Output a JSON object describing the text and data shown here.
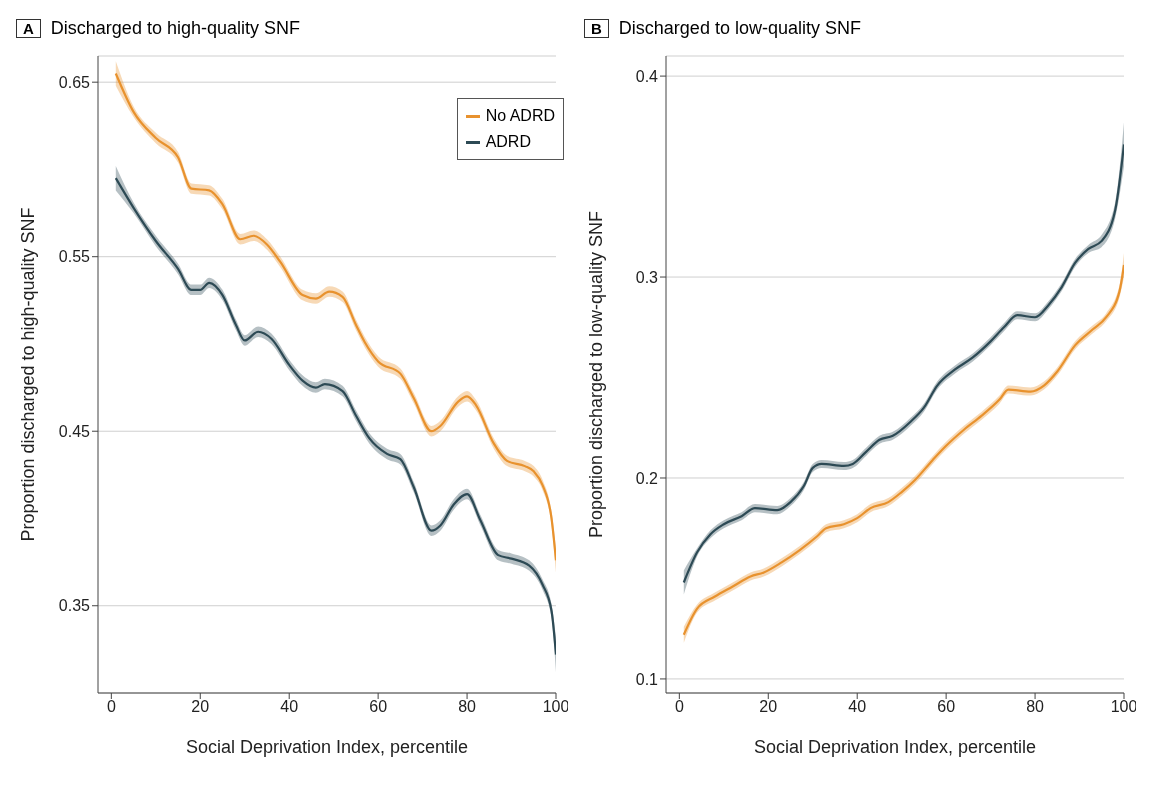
{
  "chart_data": [
    {
      "type": "line",
      "title": "Discharged to high-quality SNF",
      "annotations": [
        "A"
      ],
      "xlabel": "Social Deprivation Index, percentile",
      "ylabel": "Proportion discharged to high-quality SNF",
      "xlim": [
        -3,
        100
      ],
      "xticks": [
        0,
        20,
        40,
        60,
        80,
        100
      ],
      "ylim": [
        0.3,
        0.665
      ],
      "yticks": [
        0.35,
        0.45,
        0.55,
        0.65
      ],
      "grid": "y",
      "legend": "top right",
      "series": [
        {
          "name": "No ADRD",
          "color": "#e8922e",
          "x": [
            1,
            5,
            10,
            15,
            18,
            22,
            25,
            29,
            32,
            35,
            38,
            43,
            46,
            49,
            52,
            55,
            57,
            60,
            65,
            68,
            72,
            74,
            78,
            80,
            82,
            86,
            89,
            93,
            95,
            97,
            99,
            100
          ],
          "values": [
            0.655,
            0.633,
            0.618,
            0.607,
            0.589,
            0.588,
            0.58,
            0.56,
            0.562,
            0.557,
            0.547,
            0.528,
            0.526,
            0.53,
            0.527,
            0.511,
            0.501,
            0.49,
            0.483,
            0.469,
            0.45,
            0.453,
            0.467,
            0.47,
            0.465,
            0.443,
            0.433,
            0.43,
            0.427,
            0.419,
            0.4,
            0.376
          ],
          "lower": [
            0.648,
            0.63,
            0.615,
            0.604,
            0.586,
            0.585,
            0.577,
            0.557,
            0.559,
            0.554,
            0.544,
            0.525,
            0.523,
            0.527,
            0.524,
            0.508,
            0.498,
            0.487,
            0.48,
            0.466,
            0.447,
            0.45,
            0.464,
            0.467,
            0.462,
            0.44,
            0.43,
            0.427,
            0.424,
            0.416,
            0.396,
            0.369
          ],
          "upper": [
            0.662,
            0.636,
            0.621,
            0.61,
            0.592,
            0.591,
            0.583,
            0.563,
            0.565,
            0.56,
            0.55,
            0.531,
            0.529,
            0.533,
            0.53,
            0.514,
            0.504,
            0.493,
            0.486,
            0.472,
            0.453,
            0.456,
            0.47,
            0.473,
            0.468,
            0.446,
            0.436,
            0.433,
            0.43,
            0.422,
            0.404,
            0.383
          ]
        },
        {
          "name": "ADRD",
          "color": "#2d4a55",
          "x": [
            1,
            5,
            10,
            15,
            18,
            20,
            22,
            25,
            28,
            30,
            33,
            36,
            40,
            43,
            46,
            48,
            52,
            55,
            58,
            62,
            65,
            68,
            72,
            74,
            77,
            80,
            83,
            87,
            90,
            94,
            97,
            99,
            100
          ],
          "values": [
            0.595,
            0.578,
            0.559,
            0.543,
            0.531,
            0.531,
            0.535,
            0.528,
            0.511,
            0.502,
            0.507,
            0.503,
            0.488,
            0.479,
            0.475,
            0.477,
            0.473,
            0.459,
            0.446,
            0.437,
            0.434,
            0.418,
            0.393,
            0.396,
            0.408,
            0.414,
            0.399,
            0.379,
            0.377,
            0.373,
            0.362,
            0.347,
            0.322
          ],
          "lower": [
            0.588,
            0.575,
            0.556,
            0.54,
            0.528,
            0.528,
            0.532,
            0.525,
            0.508,
            0.499,
            0.504,
            0.5,
            0.485,
            0.476,
            0.472,
            0.474,
            0.47,
            0.456,
            0.443,
            0.434,
            0.431,
            0.415,
            0.39,
            0.393,
            0.405,
            0.411,
            0.396,
            0.376,
            0.374,
            0.37,
            0.359,
            0.343,
            0.312
          ],
          "upper": [
            0.602,
            0.581,
            0.562,
            0.546,
            0.534,
            0.534,
            0.538,
            0.531,
            0.514,
            0.505,
            0.51,
            0.506,
            0.491,
            0.482,
            0.478,
            0.48,
            0.476,
            0.462,
            0.449,
            0.44,
            0.437,
            0.421,
            0.396,
            0.399,
            0.411,
            0.417,
            0.402,
            0.382,
            0.38,
            0.376,
            0.365,
            0.351,
            0.332
          ]
        }
      ]
    },
    {
      "type": "line",
      "title": "Discharged to low-quality SNF",
      "annotations": [
        "B"
      ],
      "xlabel": "Social Deprivation Index, percentile",
      "ylabel": "Proportion discharged to low-quality SNF",
      "xlim": [
        -3,
        100
      ],
      "xticks": [
        0,
        20,
        40,
        60,
        80,
        100
      ],
      "ylim": [
        0.093,
        0.41
      ],
      "yticks": [
        0.1,
        0.2,
        0.3,
        0.4
      ],
      "grid": "y",
      "series": [
        {
          "color": "#2d4a55",
          "x": [
            1,
            4,
            7,
            10,
            14,
            17,
            22,
            25,
            28,
            30,
            32,
            37,
            39,
            42,
            45,
            48,
            52,
            55,
            58,
            62,
            66,
            70,
            73,
            76,
            80,
            83,
            86,
            89,
            92,
            95,
            98,
            100
          ],
          "values": [
            0.148,
            0.163,
            0.172,
            0.177,
            0.181,
            0.185,
            0.184,
            0.188,
            0.196,
            0.205,
            0.207,
            0.206,
            0.207,
            0.213,
            0.219,
            0.221,
            0.228,
            0.235,
            0.246,
            0.254,
            0.26,
            0.268,
            0.275,
            0.281,
            0.28,
            0.286,
            0.295,
            0.307,
            0.314,
            0.318,
            0.333,
            0.366
          ],
          "lower": [
            0.142,
            0.161,
            0.17,
            0.175,
            0.179,
            0.183,
            0.182,
            0.186,
            0.194,
            0.203,
            0.205,
            0.204,
            0.205,
            0.211,
            0.217,
            0.219,
            0.226,
            0.233,
            0.244,
            0.252,
            0.258,
            0.266,
            0.273,
            0.279,
            0.278,
            0.284,
            0.293,
            0.305,
            0.312,
            0.315,
            0.329,
            0.355
          ],
          "upper": [
            0.154,
            0.165,
            0.174,
            0.179,
            0.183,
            0.187,
            0.186,
            0.19,
            0.198,
            0.207,
            0.209,
            0.208,
            0.209,
            0.215,
            0.221,
            0.223,
            0.23,
            0.237,
            0.248,
            0.256,
            0.262,
            0.27,
            0.277,
            0.283,
            0.282,
            0.288,
            0.297,
            0.309,
            0.316,
            0.321,
            0.337,
            0.377
          ]
        },
        {
          "color": "#e8922e",
          "x": [
            1,
            4,
            8,
            12,
            16,
            19,
            23,
            27,
            31,
            33,
            37,
            40,
            43,
            47,
            50,
            53,
            57,
            60,
            64,
            68,
            72,
            74,
            79,
            82,
            85,
            89,
            93,
            96,
            99,
            100
          ],
          "values": [
            0.122,
            0.135,
            0.141,
            0.146,
            0.151,
            0.153,
            0.158,
            0.164,
            0.171,
            0.175,
            0.177,
            0.18,
            0.185,
            0.188,
            0.193,
            0.199,
            0.209,
            0.216,
            0.224,
            0.231,
            0.239,
            0.244,
            0.243,
            0.246,
            0.253,
            0.266,
            0.274,
            0.28,
            0.293,
            0.306
          ],
          "lower": [
            0.118,
            0.133,
            0.139,
            0.144,
            0.149,
            0.151,
            0.156,
            0.162,
            0.169,
            0.173,
            0.175,
            0.178,
            0.183,
            0.186,
            0.191,
            0.197,
            0.207,
            0.214,
            0.222,
            0.229,
            0.237,
            0.242,
            0.241,
            0.244,
            0.251,
            0.264,
            0.272,
            0.278,
            0.29,
            0.3
          ],
          "upper": [
            0.126,
            0.137,
            0.143,
            0.148,
            0.153,
            0.155,
            0.16,
            0.166,
            0.173,
            0.177,
            0.179,
            0.182,
            0.187,
            0.19,
            0.195,
            0.201,
            0.211,
            0.218,
            0.226,
            0.233,
            0.241,
            0.246,
            0.245,
            0.248,
            0.255,
            0.268,
            0.276,
            0.282,
            0.296,
            0.312
          ]
        }
      ]
    }
  ]
}
